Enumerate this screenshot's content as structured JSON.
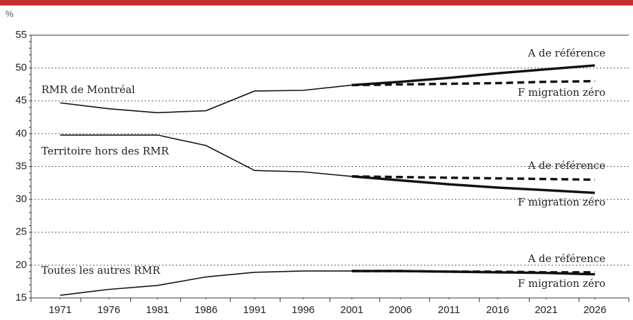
{
  "chart_data": {
    "type": "line",
    "y_unit": "%",
    "x": [
      1971,
      1976,
      1981,
      1986,
      1991,
      1996,
      2001,
      2006,
      2011,
      2016,
      2021,
      2026
    ],
    "xlim": [
      1968,
      2029.5
    ],
    "xticks": [
      1971,
      1976,
      1981,
      1986,
      1991,
      1996,
      2001,
      2006,
      2011,
      2016,
      2021,
      2026
    ],
    "ylim": [
      15,
      55
    ],
    "yticks": [
      15,
      20,
      25,
      30,
      35,
      40,
      45,
      50,
      55
    ],
    "grid": true,
    "series": [
      {
        "name": "RMR de Montréal",
        "color": "#111111",
        "dashed": false,
        "values": [
          44.7,
          43.8,
          43.2,
          43.5,
          46.5,
          46.6,
          47.4,
          null,
          null,
          null,
          null,
          null
        ]
      },
      {
        "name": "A de référence",
        "color": "#111111",
        "dashed": false,
        "projection": true,
        "values": [
          null,
          null,
          null,
          null,
          null,
          null,
          47.4,
          47.9,
          48.5,
          49.2,
          49.8,
          50.4
        ]
      },
      {
        "name": "F migration zéro",
        "color": "#111111",
        "dashed": true,
        "projection": true,
        "values": [
          null,
          null,
          null,
          null,
          null,
          null,
          47.4,
          47.5,
          47.6,
          47.7,
          47.9,
          48.0
        ]
      },
      {
        "name": "Territoire hors des RMR",
        "color": "#111111",
        "dashed": false,
        "values": [
          39.8,
          39.8,
          39.8,
          38.2,
          34.4,
          34.2,
          33.5,
          null,
          null,
          null,
          null,
          null
        ]
      },
      {
        "name": "A de référence",
        "color": "#111111",
        "dashed": false,
        "projection": true,
        "values": [
          null,
          null,
          null,
          null,
          null,
          null,
          33.5,
          32.9,
          32.3,
          31.8,
          31.4,
          31.0
        ]
      },
      {
        "name": "F migration zéro",
        "color": "#111111",
        "dashed": true,
        "projection": true,
        "values": [
          null,
          null,
          null,
          null,
          null,
          null,
          33.5,
          33.4,
          33.3,
          33.2,
          33.1,
          33.0
        ]
      },
      {
        "name": "Toutes les autres RMR",
        "color": "#111111",
        "dashed": false,
        "values": [
          15.4,
          16.3,
          16.9,
          18.2,
          18.9,
          19.1,
          19.1,
          null,
          null,
          null,
          null,
          null
        ]
      },
      {
        "name": "A de référence",
        "color": "#111111",
        "dashed": false,
        "projection": true,
        "values": [
          null,
          null,
          null,
          null,
          null,
          null,
          19.1,
          19.1,
          19.0,
          18.9,
          18.8,
          18.6
        ]
      },
      {
        "name": "F migration zéro",
        "color": "#111111",
        "dashed": true,
        "projection": true,
        "values": [
          null,
          null,
          null,
          null,
          null,
          null,
          19.1,
          19.1,
          19.0,
          19.0,
          18.9,
          18.9
        ]
      }
    ]
  }
}
